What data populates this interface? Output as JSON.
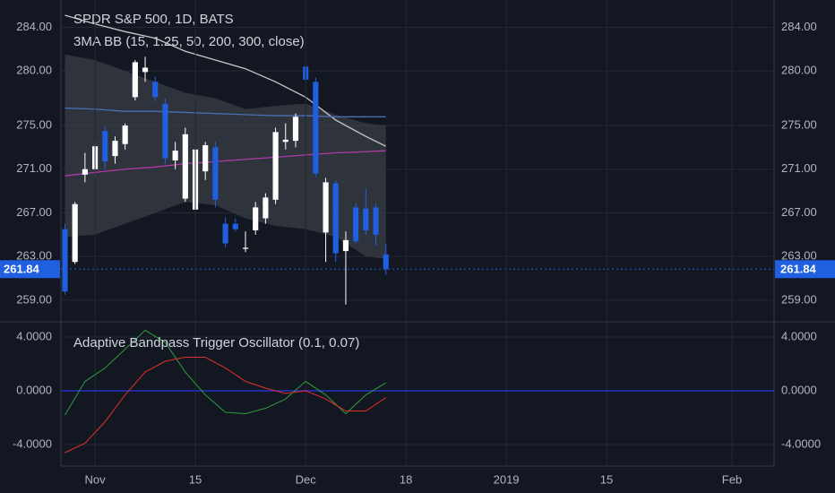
{
  "chart_data": [
    {
      "type": "candlestick",
      "title": "SPDR S&P 500, 1D, BATS",
      "subtitle": "3MA BB (15, 1.25, 50, 200, 300, close)",
      "x": [
        -3,
        -2,
        -1,
        0,
        1,
        2,
        3,
        4,
        5,
        6,
        7,
        8,
        9,
        10,
        11,
        12,
        13,
        14,
        15,
        16,
        17,
        18,
        19,
        20,
        21,
        22,
        23,
        24,
        25,
        26,
        27,
        28,
        29
      ],
      "open": [
        265.5,
        262.5,
        270.5,
        271,
        274.5,
        272.2,
        273.3,
        277.6,
        279.9,
        279,
        277,
        271.8,
        268.3,
        267.3,
        270.8,
        273,
        266,
        266,
        263.7,
        265.4,
        266.5,
        268.2,
        273.5,
        273.6,
        280.4,
        279,
        265.2,
        269.7,
        263.5,
        267.5,
        267.4,
        267.5,
        263.2
      ],
      "high": [
        266,
        268,
        272.5,
        273.5,
        275,
        274,
        275.2,
        281,
        281.3,
        279.5,
        277.5,
        273.5,
        274.8,
        273.3,
        273.5,
        273.5,
        266.6,
        266.5,
        265.3,
        268,
        268.8,
        274.8,
        275.2,
        276.1,
        280.6,
        279.4,
        270.2,
        270,
        265.3,
        267.9,
        269.2,
        267.9,
        264.2
      ],
      "low": [
        259.5,
        262.3,
        269.8,
        270.3,
        271,
        271.5,
        272.8,
        277.3,
        279,
        277.2,
        271.5,
        271,
        268,
        266.8,
        270,
        267.5,
        263.8,
        265.3,
        263.4,
        265,
        266,
        267.8,
        272.8,
        273,
        279,
        270.3,
        262.5,
        262.5,
        258.6,
        264.2,
        265,
        264,
        261.3
      ],
      "close": [
        259.8,
        267.8,
        271,
        273.1,
        271.7,
        273.6,
        275,
        280.8,
        280.3,
        277.6,
        272,
        272.7,
        274.2,
        272.8,
        273.2,
        268.2,
        264.2,
        265.5,
        263.8,
        267.5,
        268.4,
        274.4,
        273.7,
        275.8,
        279.2,
        270.6,
        269.8,
        263.3,
        264.5,
        264.4,
        265.4,
        265,
        261.84
      ],
      "up_color": "#ffffff",
      "down_color": "#1f5fe0",
      "band": {
        "color": "#3a3d45",
        "x": [
          -3,
          0,
          3,
          6,
          9,
          12,
          15,
          18,
          21,
          24,
          27,
          29
        ],
        "upper": [
          281.5,
          281,
          280,
          279,
          278,
          277.5,
          276.5,
          276.8,
          277,
          276,
          275.2,
          275
        ],
        "lower": [
          264.8,
          265,
          266,
          267,
          268,
          267.7,
          266.5,
          265.8,
          265.5,
          264.8,
          263,
          262.8
        ]
      },
      "lines": [
        {
          "color": "#c8c8c8",
          "x": [
            -3,
            0,
            3,
            6,
            9,
            12,
            15,
            18,
            21,
            24,
            27,
            29
          ],
          "values": [
            285.1,
            284.3,
            283.6,
            283,
            281.8,
            281,
            280.2,
            279,
            277.6,
            275.5,
            274,
            273.1
          ]
        },
        {
          "color": "#4a6fb5",
          "x": [
            -3,
            0,
            3,
            6,
            9,
            12,
            15,
            18,
            21,
            24,
            27,
            29
          ],
          "values": [
            276.6,
            276.5,
            276.3,
            276.3,
            276.2,
            276.1,
            276,
            275.9,
            275.9,
            275.8,
            275.8,
            275.8
          ]
        },
        {
          "color": "#b03aa8",
          "x": [
            -3,
            0,
            3,
            6,
            9,
            12,
            15,
            18,
            21,
            24,
            27,
            29
          ],
          "values": [
            270.4,
            270.7,
            271,
            271.2,
            271.5,
            271.7,
            271.9,
            272.1,
            272.3,
            272.5,
            272.6,
            272.7
          ]
        }
      ],
      "last_value": 261.84,
      "last_color": "#1f5fe0",
      "xlim": [
        -3.4,
        67.7
      ],
      "ylim": [
        257.1,
        286.5
      ],
      "yticks": [
        {
          "value": 259,
          "label": "259.00"
        },
        {
          "value": 263,
          "label": "263.00"
        },
        {
          "value": 267,
          "label": "267.00"
        },
        {
          "value": 271,
          "label": "271.00"
        },
        {
          "value": 275,
          "label": "275.00"
        },
        {
          "value": 280,
          "label": "280.00"
        },
        {
          "value": 284,
          "label": "284.00"
        }
      ],
      "grid": true
    },
    {
      "type": "line",
      "title": "Adaptive Bandpass Trigger Oscillator (0.1, 0.07)",
      "x": [
        -3,
        -1,
        1,
        3,
        5,
        7,
        9,
        11,
        13,
        15,
        17,
        19,
        21,
        23,
        25,
        27,
        29
      ],
      "series": [
        {
          "color": "#2e9b3c",
          "values": [
            -1.8,
            0.7,
            1.7,
            3.1,
            4.5,
            3.6,
            1.4,
            -0.3,
            -1.6,
            -1.7,
            -1.3,
            -0.6,
            0.7,
            -0.3,
            -1.7,
            -0.3,
            0.6
          ]
        },
        {
          "color": "#e0302a",
          "values": [
            -4.6,
            -3.9,
            -2.3,
            -0.3,
            1.4,
            2.2,
            2.5,
            2.5,
            1.7,
            0.7,
            0.2,
            -0.2,
            0,
            -0.6,
            -1.5,
            -1.5,
            -0.5
          ]
        }
      ],
      "hline": 0,
      "hline_color": "#2430c8",
      "xlim": [
        -3.4,
        67.7
      ],
      "ylim": [
        -5.6,
        5.07
      ],
      "yticks": [
        {
          "value": -4,
          "label": "-4.0000"
        },
        {
          "value": 0,
          "label": "0.0000"
        },
        {
          "value": 4,
          "label": "4.0000"
        }
      ],
      "xticks": [
        {
          "value": 0,
          "label": "Nov"
        },
        {
          "value": 10,
          "label": "15"
        },
        {
          "value": 21,
          "label": "Dec"
        },
        {
          "value": 31,
          "label": "18"
        },
        {
          "value": 41,
          "label": "2019"
        },
        {
          "value": 51,
          "label": "15"
        },
        {
          "value": 63.5,
          "label": "Feb"
        }
      ],
      "grid": true
    }
  ]
}
